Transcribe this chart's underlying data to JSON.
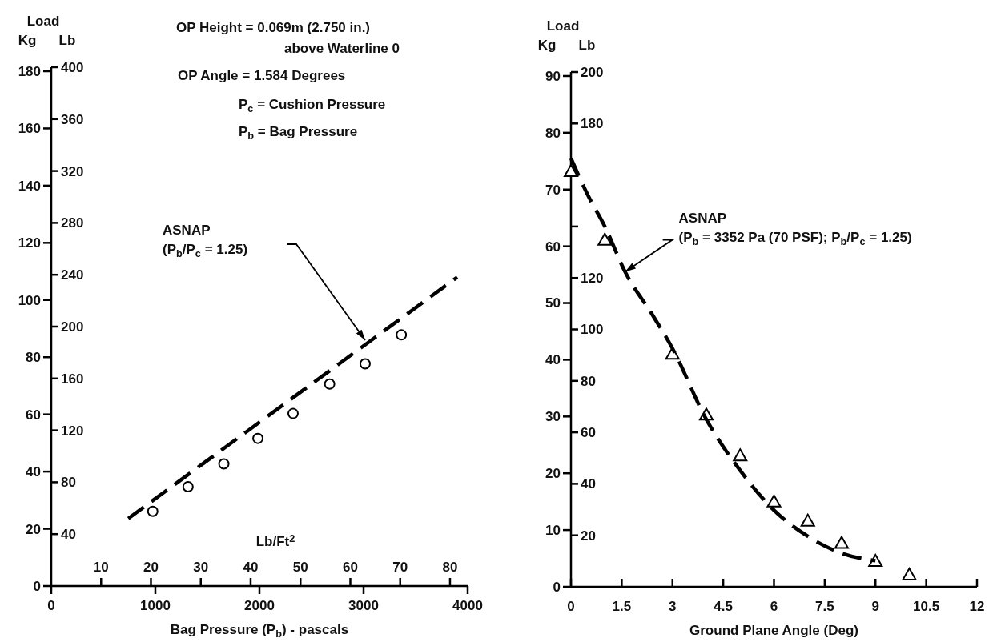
{
  "chart_data": [
    {
      "type": "scatter",
      "title": "Load",
      "xlabel": "Bag Pressure (P$_{b}$) - pascals",
      "x2label": "Lb/Ft$^{2}$",
      "ylabel": "Kg",
      "y2label": "Lb",
      "xlim": [
        0,
        4000
      ],
      "xticks": [
        0,
        1000,
        2000,
        3000,
        4000
      ],
      "x2lim": [
        0,
        83.54
      ],
      "x2ticks": [
        10,
        20,
        30,
        40,
        50,
        60,
        70,
        80
      ],
      "ylim": [
        0,
        181.4
      ],
      "yticks": [
        0,
        20,
        40,
        60,
        80,
        100,
        120,
        140,
        160,
        180
      ],
      "y2lim": [
        0,
        400
      ],
      "y2ticks": [
        40,
        80,
        120,
        160,
        200,
        240,
        280,
        320,
        360,
        400
      ],
      "series": [
        {
          "marker": "circle",
          "color": "#000000",
          "x": [
            975,
            1314,
            1658,
            1985,
            2323,
            2674,
            3015,
            3363
          ],
          "values": [
            26.1,
            34.7,
            42.7,
            51.6,
            60.3,
            70.6,
            77.7,
            87.8
          ]
        },
        {
          "type": "line",
          "line_style": "dashed",
          "color": "#000000",
          "x": [
            740,
            3900
          ],
          "values": [
            23.6,
            108
          ]
        }
      ],
      "annotations": [
        "ASNAP\n(P$_{b}$/P$_{c}$ = 1.25)",
        "OP Height = 0.069m (2.750 in.)",
        "above Waterline 0",
        "OP Angle  = 1.584 Degrees",
        "P$_{c}$ =  Cushion Pressure",
        "P$_{b}$ = Bag Pressure"
      ]
    },
    {
      "type": "scatter",
      "title": "Load",
      "xlabel": "Ground Plane Angle (Deg)",
      "ylabel": "Kg",
      "y2label": "Lb",
      "xlim": [
        0,
        12
      ],
      "xticks": [
        0,
        1.5,
        3,
        4.5,
        6,
        7.5,
        9,
        10.5,
        12
      ],
      "ylim": [
        0,
        90.7
      ],
      "yticks": [
        0,
        10,
        20,
        30,
        40,
        50,
        60,
        70,
        80,
        90
      ],
      "y2lim": [
        0,
        200
      ],
      "y2ticks": [
        20,
        40,
        60,
        80,
        100,
        120,
        {
          "value": 140,
          "label": null
        },
        180,
        200
      ],
      "series": [
        {
          "marker": "triangle",
          "color": "#000000",
          "x": [
            0,
            1,
            3,
            4,
            5,
            6,
            7,
            8,
            9,
            10
          ],
          "values": [
            73.2,
            61.1,
            41,
            30.3,
            23.1,
            15,
            11.6,
            7.7,
            4.5,
            2.1
          ]
        },
        {
          "type": "line",
          "line_style": "dashed",
          "color": "#000000",
          "x": [
            0,
            0.5,
            1,
            1.6,
            2.4,
            3,
            4,
            5,
            6,
            7,
            8,
            9
          ],
          "values": [
            75.5,
            69,
            63.5,
            55.5,
            48,
            42,
            29.5,
            20.5,
            13.5,
            8.9,
            5.9,
            4.6
          ]
        }
      ],
      "annotations": [
        {
          "text": "ASNAP\n(P$_{b}$ = 3352 Pa (70 PSF); P$_{b}$/P$_{c}$ = 1.25)",
          "x": 1.6,
          "y": 55.5
        }
      ]
    }
  ]
}
